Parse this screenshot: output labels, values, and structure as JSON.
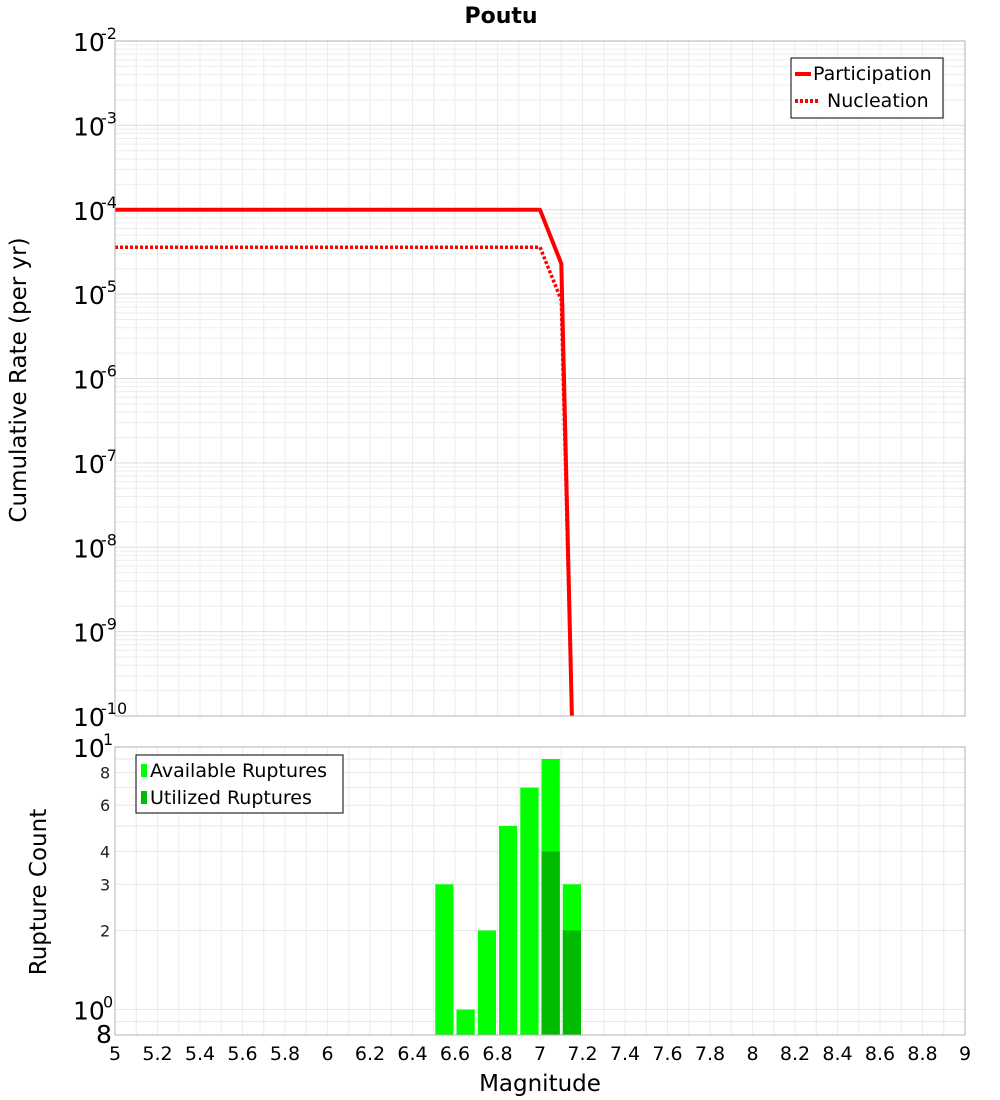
{
  "chart_data": [
    {
      "type": "line",
      "title": "Poutu",
      "xlabel": "",
      "ylabel": "Cumulative Rate (per yr)",
      "xlim": [
        5,
        9
      ],
      "ylim": [
        1e-10,
        0.01
      ],
      "yscale": "log",
      "grid": true,
      "legend_placement": "top-right",
      "y_tick_labels": [
        {
          "base": "10",
          "exp": "-2"
        },
        {
          "base": "10",
          "exp": "-3"
        },
        {
          "base": "10",
          "exp": "-4"
        },
        {
          "base": "10",
          "exp": "-5"
        },
        {
          "base": "10",
          "exp": "-6"
        },
        {
          "base": "10",
          "exp": "-7"
        },
        {
          "base": "10",
          "exp": "-8"
        },
        {
          "base": "10",
          "exp": "-9"
        },
        {
          "base": "10",
          "exp": "-10"
        }
      ],
      "series": [
        {
          "name": "Participation",
          "style": "solid",
          "color": "#ff0000",
          "x": [
            5.0,
            7.0,
            7.1,
            7.15
          ],
          "y": [
            0.0001,
            0.0001,
            2.3e-05,
            1e-10
          ]
        },
        {
          "name": "Nucleation",
          "style": "dotted",
          "color": "#ff0000",
          "x": [
            5.0,
            7.0,
            7.1,
            7.15
          ],
          "y": [
            3.6e-05,
            3.6e-05,
            8.5e-06,
            1e-10
          ]
        }
      ]
    },
    {
      "type": "bar",
      "title": "",
      "xlabel": "Magnitude",
      "ylabel": "Rupture Count",
      "xlim": [
        5,
        9
      ],
      "ylim": [
        0.8,
        10
      ],
      "yscale": "log",
      "grid": true,
      "legend_placement": "top-left",
      "x_ticks": [
        "5",
        "5.2",
        "5.4",
        "5.6",
        "5.8",
        "6",
        "6.2",
        "6.4",
        "6.6",
        "6.8",
        "7",
        "7.2",
        "7.4",
        "7.6",
        "7.8",
        "8",
        "8.2",
        "8.4",
        "8.6",
        "8.8",
        "9"
      ],
      "y_tick_labels": [
        {
          "text": "8",
          "style": "big"
        },
        {
          "text": "2",
          "style": "small"
        },
        {
          "text": "3",
          "style": "small"
        },
        {
          "text": "4",
          "style": "small"
        },
        {
          "text": "6",
          "style": "small"
        },
        {
          "text": "8",
          "style": "small"
        }
      ],
      "y_decade_labels": [
        {
          "base": "10",
          "exp": "0"
        },
        {
          "base": "10",
          "exp": "1"
        }
      ],
      "bin_width": 0.1,
      "x": [
        6.55,
        6.65,
        6.75,
        6.85,
        6.95,
        7.05,
        7.15
      ],
      "series": [
        {
          "name": "Available Ruptures",
          "color": "#00ff00",
          "values": [
            3,
            1,
            2,
            5,
            7,
            9,
            3
          ]
        },
        {
          "name": "Utilized Ruptures",
          "color": "#00bb00",
          "values": [
            0,
            0,
            0,
            0,
            0,
            4,
            2
          ]
        }
      ]
    }
  ]
}
